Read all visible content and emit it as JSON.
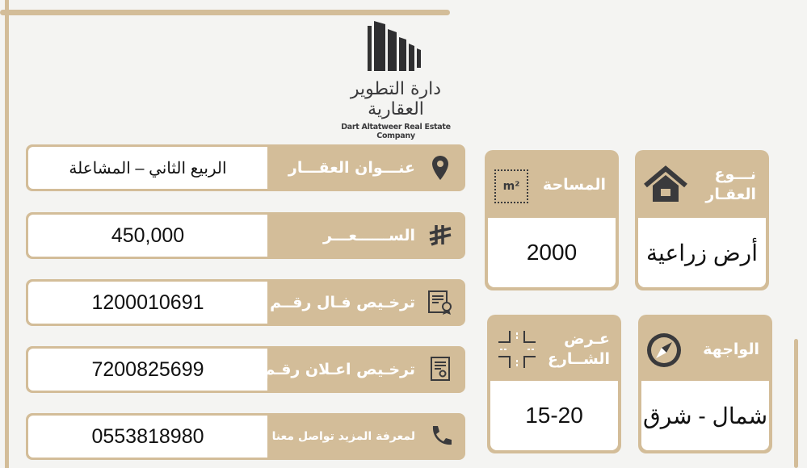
{
  "brand": {
    "name_ar": "دارة التطوير العقارية",
    "name_en": "Dart Altatweer Real Estate Company"
  },
  "colors": {
    "accent": "#d3bd99",
    "icon": "#3a3a3c",
    "background": "#f4f4f2"
  },
  "rows": [
    {
      "label": "عنـــوان العقـــار",
      "value": "الربيع الثاني – المشاعلة",
      "icon": "location-pin-icon"
    },
    {
      "label": "الســــــعـــر",
      "value": "450,000",
      "icon": "riyal-icon"
    },
    {
      "label": "ترخـيص فـال رقــم",
      "value": "1200010691",
      "icon": "certificate-icon"
    },
    {
      "label": "ترخـيص اعـلان رقـم",
      "value": "7200825699",
      "icon": "document-icon"
    },
    {
      "label": "لمعرفة المزيد تواصل معنا",
      "value": "0553818980",
      "icon": "phone-icon"
    }
  ],
  "cards": {
    "type": {
      "label": "نـــوع العقـار",
      "value": "أرض زراعية",
      "icon": "house-icon"
    },
    "area": {
      "label": "المساحة",
      "value": "2000",
      "icon": "area-m2-icon",
      "icon_text": "m²"
    },
    "facade": {
      "label": "الواجهة",
      "value": "شمال - شرق",
      "icon": "compass-icon"
    },
    "street": {
      "label": "عـرض الشــارع",
      "value": "15-20",
      "icon": "street-intersection-icon"
    }
  }
}
